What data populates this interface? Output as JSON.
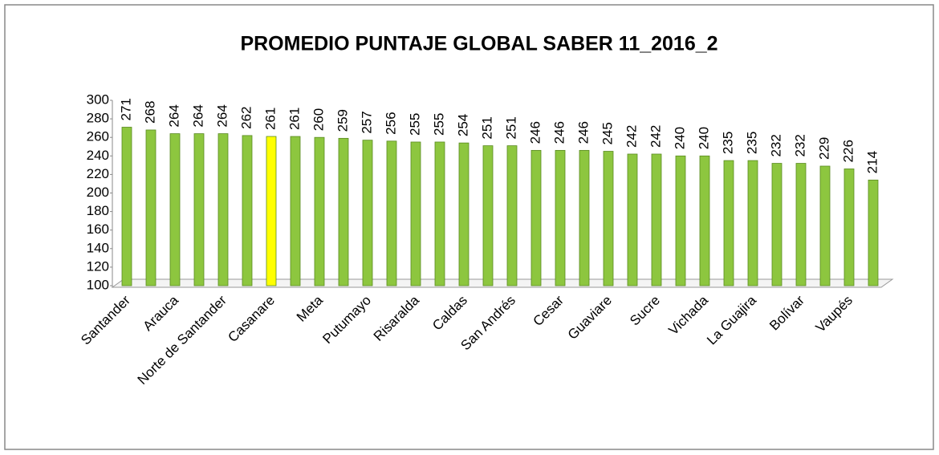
{
  "chart_data": {
    "type": "bar",
    "title": "PROMEDIO PUNTAJE GLOBAL SABER 11_2016_2",
    "categories": [
      "Santander",
      null,
      "Arauca",
      null,
      "Norte de Santander",
      null,
      "Casanare",
      null,
      "Meta",
      null,
      "Putumayo",
      null,
      "Risaralda",
      null,
      "Caldas",
      null,
      "San Andrés",
      null,
      "Cesar",
      null,
      "Guaviare",
      null,
      "Sucre",
      null,
      "Vichada",
      null,
      "La Guajira",
      null,
      "Bolívar",
      null,
      "Vaupés",
      null
    ],
    "values": [
      271,
      268,
      264,
      264,
      264,
      262,
      261,
      261,
      260,
      259,
      257,
      256,
      255,
      255,
      254,
      251,
      251,
      246,
      246,
      246,
      245,
      242,
      242,
      240,
      240,
      235,
      235,
      232,
      232,
      229,
      226,
      214
    ],
    "colors": [
      "#8dc63f",
      "#8dc63f",
      "#8dc63f",
      "#8dc63f",
      "#8dc63f",
      "#8dc63f",
      "#ffff00",
      "#8dc63f",
      "#8dc63f",
      "#8dc63f",
      "#8dc63f",
      "#8dc63f",
      "#8dc63f",
      "#8dc63f",
      "#8dc63f",
      "#8dc63f",
      "#8dc63f",
      "#8dc63f",
      "#8dc63f",
      "#8dc63f",
      "#8dc63f",
      "#8dc63f",
      "#8dc63f",
      "#8dc63f",
      "#8dc63f",
      "#8dc63f",
      "#8dc63f",
      "#8dc63f",
      "#8dc63f",
      "#8dc63f",
      "#8dc63f",
      "#8dc63f"
    ],
    "ylim": [
      100,
      300
    ],
    "yticks": [
      100,
      120,
      140,
      160,
      180,
      200,
      220,
      240,
      260,
      280,
      300
    ],
    "grid": false
  }
}
